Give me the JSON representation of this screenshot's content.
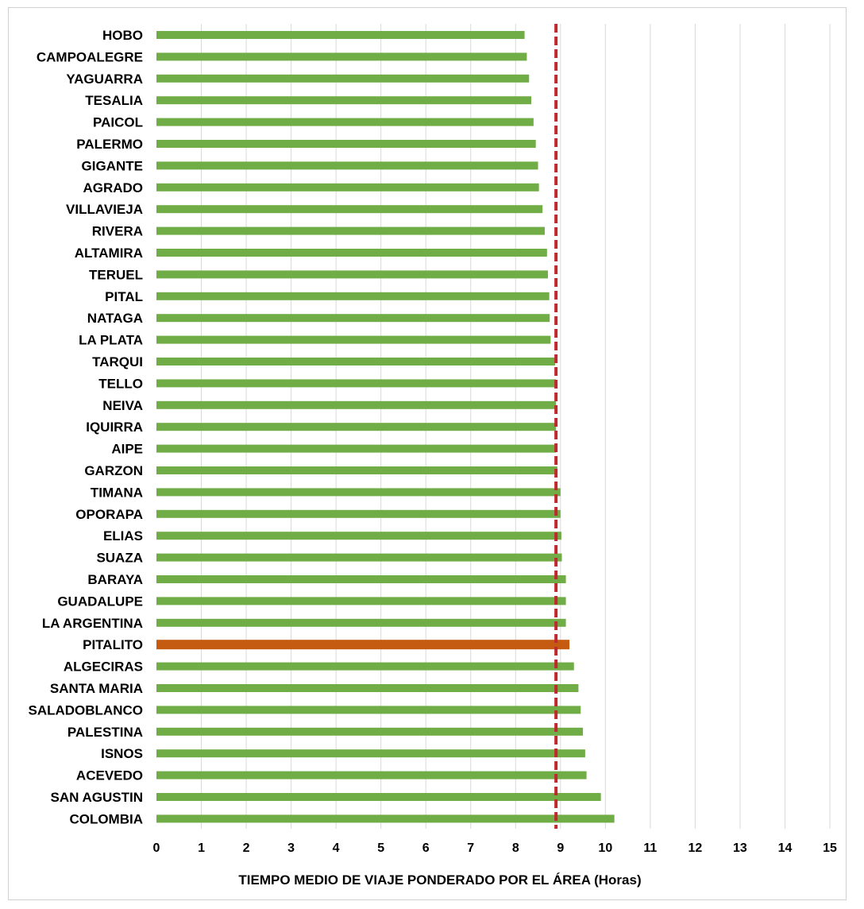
{
  "chart_data": {
    "type": "bar",
    "orientation": "horizontal",
    "categories": [
      "HOBO",
      "CAMPOALEGRE",
      "YAGUARRA",
      "TESALIA",
      "PAICOL",
      "PALERMO",
      "GIGANTE",
      "AGRADO",
      "VILLAVIEJA",
      "RIVERA",
      "ALTAMIRA",
      "TERUEL",
      "PITAL",
      "NATAGA",
      "LA PLATA",
      "TARQUI",
      "TELLO",
      "NEIVA",
      "IQUIRRA",
      "AIPE",
      "GARZON",
      "TIMANA",
      "OPORAPA",
      "ELIAS",
      "SUAZA",
      "BARAYA",
      "GUADALUPE",
      "LA ARGENTINA",
      "PITALITO",
      "ALGECIRAS",
      "SANTA MARIA",
      "SALADOBLANCO",
      "PALESTINA",
      "ISNOS",
      "ACEVEDO",
      "SAN AGUSTIN",
      "COLOMBIA"
    ],
    "values": [
      8.2,
      8.25,
      8.3,
      8.35,
      8.4,
      8.45,
      8.5,
      8.52,
      8.6,
      8.65,
      8.7,
      8.72,
      8.75,
      8.76,
      8.78,
      8.88,
      8.9,
      8.9,
      8.9,
      8.9,
      8.93,
      9.0,
      9.0,
      9.02,
      9.03,
      9.12,
      9.12,
      9.12,
      9.2,
      9.3,
      9.4,
      9.45,
      9.5,
      9.55,
      9.58,
      9.9,
      10.2
    ],
    "highlight_category": "PITALITO",
    "reference_line": {
      "value": 8.9,
      "style": "dashed",
      "color": "#c0282d"
    },
    "xlabel": "TIEMPO MEDIO DE VIAJE  PONDERADO POR  EL ÁREA (Horas)",
    "xlim": [
      0,
      15
    ],
    "x_ticks": [
      0,
      1,
      2,
      3,
      4,
      5,
      6,
      7,
      8,
      9,
      10,
      11,
      12,
      13,
      14,
      15
    ],
    "grid": "vertical",
    "colors": {
      "bar": "#70ad47",
      "highlight": "#c55a11",
      "grid": "#d9d9d9",
      "reference": "#c0282d"
    }
  }
}
